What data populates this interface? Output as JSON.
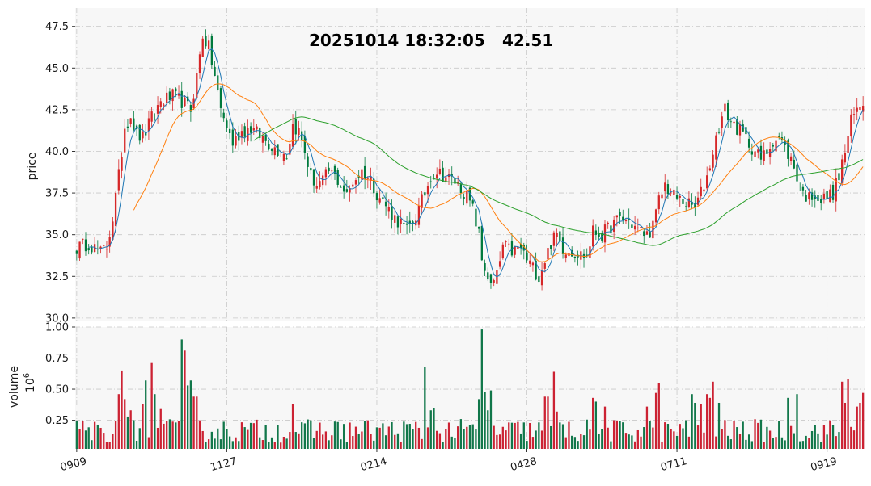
{
  "headline": {
    "datetime": "20251014 18:32:05",
    "price": "42.51"
  },
  "chart_data": {
    "type": "candlestick",
    "colors": {
      "up": "#d62728",
      "down": "#007a3d",
      "up_volume": "#cc2233",
      "down_volume": "#11774a",
      "ma_short": "#1f77b4",
      "ma_mid": "#ff7f0e",
      "ma_long": "#2ca02c",
      "panel_bg": "#f7f7f7",
      "grid": "#c8c8c8"
    },
    "grid": true,
    "x_ticks": [
      "0909",
      "1127",
      "0214",
      "0428",
      "0711",
      "0919"
    ],
    "x_tick_index": [
      0,
      50,
      100,
      150,
      200,
      250
    ],
    "n_bars": 263,
    "price_panel": {
      "ylabel": "price",
      "ylim": [
        29.8,
        48.6
      ],
      "yticks": [
        "30.0",
        "32.5",
        "35.0",
        "37.5",
        "40.0",
        "42.5",
        "45.0",
        "47.5"
      ],
      "anchors": [
        [
          0,
          34.2
        ],
        [
          4,
          34.5
        ],
        [
          8,
          33.9
        ],
        [
          10,
          34.3
        ],
        [
          12,
          36.0
        ],
        [
          14,
          38.5
        ],
        [
          16,
          41.5
        ],
        [
          18,
          42.2
        ],
        [
          20,
          41.0
        ],
        [
          22,
          40.8
        ],
        [
          25,
          42.0
        ],
        [
          28,
          43.0
        ],
        [
          32,
          43.3
        ],
        [
          35,
          43.0
        ],
        [
          38,
          42.5
        ],
        [
          40,
          44.5
        ],
        [
          42,
          47.0
        ],
        [
          44,
          46.2
        ],
        [
          46,
          44.5
        ],
        [
          48,
          42.5
        ],
        [
          50,
          41.5
        ],
        [
          52,
          40.5
        ],
        [
          55,
          41.2
        ],
        [
          58,
          41.4
        ],
        [
          62,
          40.8
        ],
        [
          66,
          40.2
        ],
        [
          70,
          39.8
        ],
        [
          72,
          41.6
        ],
        [
          74,
          41.2
        ],
        [
          76,
          40.0
        ],
        [
          78,
          38.5
        ],
        [
          80,
          38.0
        ],
        [
          82,
          38.2
        ],
        [
          84,
          38.8
        ],
        [
          86,
          38.5
        ],
        [
          88,
          38.0
        ],
        [
          90,
          37.3
        ],
        [
          92,
          38.2
        ],
        [
          95,
          38.8
        ],
        [
          98,
          38.3
        ],
        [
          100,
          37.5
        ],
        [
          102,
          37.0
        ],
        [
          104,
          36.5
        ],
        [
          106,
          36.0
        ],
        [
          108,
          35.7
        ],
        [
          110,
          35.2
        ],
        [
          112,
          35.8
        ],
        [
          114,
          36.5
        ],
        [
          116,
          37.5
        ],
        [
          118,
          38.5
        ],
        [
          120,
          38.8
        ],
        [
          123,
          38.5
        ],
        [
          126,
          38.2
        ],
        [
          128,
          37.8
        ],
        [
          130,
          37.3
        ],
        [
          132,
          36.5
        ],
        [
          134,
          35.0
        ],
        [
          135,
          33.5
        ],
        [
          137,
          32.5
        ],
        [
          138,
          31.8
        ],
        [
          140,
          32.5
        ],
        [
          142,
          34.3
        ],
        [
          145,
          34.0
        ],
        [
          148,
          34.2
        ],
        [
          150,
          33.5
        ],
        [
          152,
          33.0
        ],
        [
          154,
          32.5
        ],
        [
          156,
          33.5
        ],
        [
          158,
          34.5
        ],
        [
          160,
          35.0
        ],
        [
          162,
          34.2
        ],
        [
          165,
          34.0
        ],
        [
          168,
          33.8
        ],
        [
          170,
          33.7
        ],
        [
          172,
          35.2
        ],
        [
          175,
          35.0
        ],
        [
          178,
          35.5
        ],
        [
          181,
          36.0
        ],
        [
          184,
          35.8
        ],
        [
          187,
          35.3
        ],
        [
          190,
          35.0
        ],
        [
          192,
          35.5
        ],
        [
          194,
          37.0
        ],
        [
          196,
          38.0
        ],
        [
          198,
          37.5
        ],
        [
          200,
          37.2
        ],
        [
          202,
          37.0
        ],
        [
          204,
          36.8
        ],
        [
          206,
          36.6
        ],
        [
          208,
          37.5
        ],
        [
          210,
          38.5
        ],
        [
          212,
          40.0
        ],
        [
          214,
          41.5
        ],
        [
          216,
          42.5
        ],
        [
          218,
          41.8
        ],
        [
          220,
          41.4
        ],
        [
          222,
          41.0
        ],
        [
          224,
          40.5
        ],
        [
          226,
          40.0
        ],
        [
          228,
          39.5
        ],
        [
          230,
          40.0
        ],
        [
          232,
          40.7
        ],
        [
          234,
          40.8
        ],
        [
          236,
          40.2
        ],
        [
          238,
          39.5
        ],
        [
          240,
          38.5
        ],
        [
          242,
          37.5
        ],
        [
          244,
          37.2
        ],
        [
          246,
          37.5
        ],
        [
          248,
          37.0
        ],
        [
          250,
          37.3
        ],
        [
          252,
          37.5
        ],
        [
          254,
          38.5
        ],
        [
          256,
          40.0
        ],
        [
          258,
          41.8
        ],
        [
          260,
          42.5
        ],
        [
          262,
          43.0
        ]
      ],
      "moving_averages": [
        {
          "period": 5,
          "color": "#1f77b4"
        },
        {
          "period": 20,
          "color": "#ff7f0e"
        },
        {
          "period": 60,
          "color": "#2ca02c"
        }
      ]
    },
    "volume_panel": {
      "ylabel": "volume",
      "unit": "10^6",
      "ylim": [
        0.02,
        1.0
      ],
      "yticks": [
        "0.25",
        "0.50",
        "0.75",
        "1.00"
      ],
      "spikes": [
        [
          14,
          0.46
        ],
        [
          15,
          0.65
        ],
        [
          16,
          0.42
        ],
        [
          17,
          0.28
        ],
        [
          18,
          0.33
        ],
        [
          22,
          0.38
        ],
        [
          23,
          0.57
        ],
        [
          25,
          0.71
        ],
        [
          26,
          0.46
        ],
        [
          28,
          0.34
        ],
        [
          35,
          0.9
        ],
        [
          36,
          0.81
        ],
        [
          37,
          0.53
        ],
        [
          38,
          0.57
        ],
        [
          39,
          0.44
        ],
        [
          40,
          0.44
        ],
        [
          72,
          0.38
        ],
        [
          116,
          0.68
        ],
        [
          118,
          0.33
        ],
        [
          119,
          0.35
        ],
        [
          134,
          0.42
        ],
        [
          135,
          0.98
        ],
        [
          136,
          0.48
        ],
        [
          137,
          0.33
        ],
        [
          138,
          0.49
        ],
        [
          156,
          0.44
        ],
        [
          157,
          0.44
        ],
        [
          159,
          0.64
        ],
        [
          160,
          0.32
        ],
        [
          172,
          0.43
        ],
        [
          173,
          0.4
        ],
        [
          176,
          0.36
        ],
        [
          190,
          0.36
        ],
        [
          193,
          0.47
        ],
        [
          194,
          0.55
        ],
        [
          205,
          0.46
        ],
        [
          206,
          0.39
        ],
        [
          208,
          0.38
        ],
        [
          210,
          0.46
        ],
        [
          211,
          0.43
        ],
        [
          212,
          0.56
        ],
        [
          214,
          0.39
        ],
        [
          237,
          0.43
        ],
        [
          240,
          0.46
        ],
        [
          255,
          0.56
        ],
        [
          256,
          0.39
        ],
        [
          257,
          0.58
        ],
        [
          260,
          0.36
        ],
        [
          261,
          0.39
        ],
        [
          262,
          0.47
        ]
      ]
    }
  }
}
